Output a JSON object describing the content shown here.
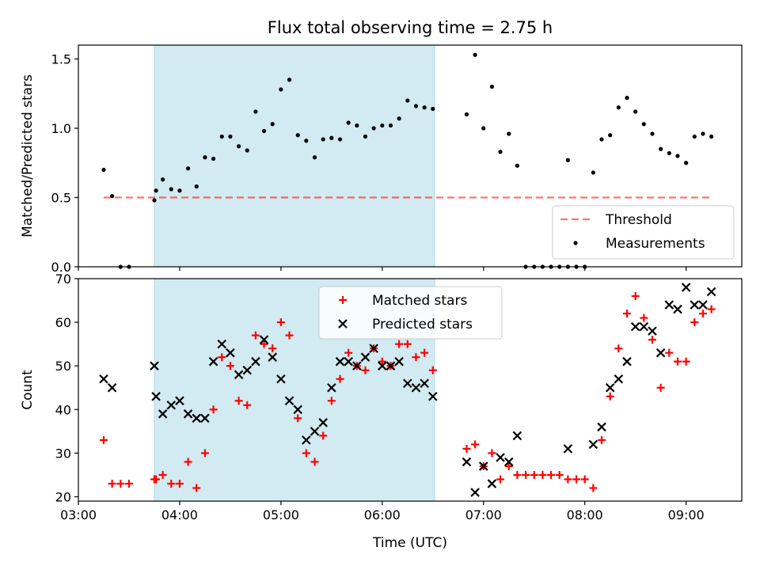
{
  "title": "Flux total observing time = 2.75 h",
  "colors": {
    "shade": "#add8e6",
    "threshold": "#ff0000",
    "measurements": "#000000",
    "matched": "#ff0000",
    "predicted": "#000000"
  },
  "chart_data": [
    {
      "type": "scatter",
      "panel": "top",
      "ylabel": "Matched/Predicted stars",
      "xlabel": "",
      "xlim": [
        "03:00",
        "09:33"
      ],
      "ylim": [
        0,
        1.6
      ],
      "yticks": [
        "0.0",
        "0.5",
        "1.0",
        "1.5"
      ],
      "shaded_region": {
        "start": "03:45",
        "end": "06:31"
      },
      "legend": {
        "position": "lower-right",
        "entries": [
          "Threshold",
          "Measurements"
        ]
      },
      "threshold": {
        "name": "Threshold",
        "value": 0.5,
        "x_range": [
          "03:15",
          "09:15"
        ],
        "style": "dashed"
      },
      "series": [
        {
          "name": "Measurements",
          "marker": "dot",
          "points": [
            [
              "03:15",
              0.7
            ],
            [
              "03:20",
              0.51
            ],
            [
              "03:25",
              0.0
            ],
            [
              "03:30",
              0.0
            ],
            [
              "03:45",
              0.48
            ],
            [
              "03:46",
              0.55
            ],
            [
              "03:50",
              0.63
            ],
            [
              "03:55",
              0.56
            ],
            [
              "04:00",
              0.55
            ],
            [
              "04:05",
              0.71
            ],
            [
              "04:10",
              0.58
            ],
            [
              "04:15",
              0.79
            ],
            [
              "04:20",
              0.78
            ],
            [
              "04:25",
              0.94
            ],
            [
              "04:30",
              0.94
            ],
            [
              "04:35",
              0.87
            ],
            [
              "04:40",
              0.84
            ],
            [
              "04:45",
              1.12
            ],
            [
              "04:50",
              0.98
            ],
            [
              "04:55",
              1.03
            ],
            [
              "05:00",
              1.28
            ],
            [
              "05:05",
              1.35
            ],
            [
              "05:10",
              0.95
            ],
            [
              "05:15",
              0.91
            ],
            [
              "05:20",
              0.79
            ],
            [
              "05:25",
              0.92
            ],
            [
              "05:30",
              0.93
            ],
            [
              "05:35",
              0.92
            ],
            [
              "05:40",
              1.04
            ],
            [
              "05:45",
              1.02
            ],
            [
              "05:50",
              0.94
            ],
            [
              "05:55",
              1.0
            ],
            [
              "06:00",
              1.02
            ],
            [
              "06:05",
              1.02
            ],
            [
              "06:10",
              1.07
            ],
            [
              "06:15",
              1.2
            ],
            [
              "06:20",
              1.16
            ],
            [
              "06:25",
              1.15
            ],
            [
              "06:30",
              1.14
            ],
            [
              "06:50",
              1.1
            ],
            [
              "06:55",
              1.53
            ],
            [
              "07:00",
              1.0
            ],
            [
              "07:05",
              1.3
            ],
            [
              "07:10",
              0.83
            ],
            [
              "07:15",
              0.96
            ],
            [
              "07:20",
              0.73
            ],
            [
              "07:25",
              0.0
            ],
            [
              "07:30",
              0.0
            ],
            [
              "07:35",
              0.0
            ],
            [
              "07:40",
              0.0
            ],
            [
              "07:45",
              0.0
            ],
            [
              "07:50",
              0.0
            ],
            [
              "07:55",
              0.0
            ],
            [
              "08:00",
              0.0
            ],
            [
              "07:50",
              0.77
            ],
            [
              "08:05",
              0.68
            ],
            [
              "08:10",
              0.92
            ],
            [
              "08:15",
              0.95
            ],
            [
              "08:20",
              1.15
            ],
            [
              "08:25",
              1.22
            ],
            [
              "08:30",
              1.12
            ],
            [
              "08:35",
              1.03
            ],
            [
              "08:40",
              0.96
            ],
            [
              "08:45",
              0.85
            ],
            [
              "08:50",
              0.82
            ],
            [
              "08:55",
              0.8
            ],
            [
              "09:00",
              0.75
            ],
            [
              "09:05",
              0.94
            ],
            [
              "09:10",
              0.96
            ],
            [
              "09:15",
              0.94
            ]
          ]
        }
      ]
    },
    {
      "type": "scatter",
      "panel": "bottom",
      "ylabel": "Count",
      "xlabel": "Time (UTC)",
      "xlim": [
        "03:00",
        "09:33"
      ],
      "ylim": [
        19,
        70
      ],
      "yticks": [
        "20",
        "30",
        "40",
        "50",
        "60",
        "70"
      ],
      "xticks": [
        "03:00",
        "04:00",
        "05:00",
        "06:00",
        "07:00",
        "08:00",
        "09:00"
      ],
      "shaded_region": {
        "start": "03:45",
        "end": "06:31"
      },
      "legend": {
        "position": "top-center",
        "entries": [
          "Matched stars",
          "Predicted stars"
        ]
      },
      "series": [
        {
          "name": "Matched stars",
          "marker": "plus",
          "points": [
            [
              "03:15",
              33
            ],
            [
              "03:20",
              23
            ],
            [
              "03:25",
              23
            ],
            [
              "03:30",
              23
            ],
            [
              "03:45",
              24
            ],
            [
              "03:46",
              24
            ],
            [
              "03:50",
              25
            ],
            [
              "03:55",
              23
            ],
            [
              "04:00",
              23
            ],
            [
              "04:05",
              28
            ],
            [
              "04:10",
              22
            ],
            [
              "04:15",
              30
            ],
            [
              "04:20",
              40
            ],
            [
              "04:25",
              52
            ],
            [
              "04:30",
              50
            ],
            [
              "04:35",
              42
            ],
            [
              "04:40",
              41
            ],
            [
              "04:45",
              57
            ],
            [
              "04:50",
              55
            ],
            [
              "04:55",
              54
            ],
            [
              "05:00",
              60
            ],
            [
              "05:05",
              57
            ],
            [
              "05:10",
              38
            ],
            [
              "05:15",
              30
            ],
            [
              "05:20",
              28
            ],
            [
              "05:25",
              34
            ],
            [
              "05:30",
              42
            ],
            [
              "05:35",
              47
            ],
            [
              "05:40",
              53
            ],
            [
              "05:45",
              50
            ],
            [
              "05:50",
              49
            ],
            [
              "05:55",
              54
            ],
            [
              "06:00",
              51
            ],
            [
              "06:05",
              50
            ],
            [
              "06:10",
              55
            ],
            [
              "06:15",
              55
            ],
            [
              "06:20",
              52
            ],
            [
              "06:25",
              53
            ],
            [
              "06:30",
              49
            ],
            [
              "06:50",
              31
            ],
            [
              "06:55",
              32
            ],
            [
              "07:00",
              27
            ],
            [
              "07:05",
              30
            ],
            [
              "07:10",
              24
            ],
            [
              "07:15",
              27
            ],
            [
              "07:20",
              25
            ],
            [
              "07:25",
              25
            ],
            [
              "07:30",
              25
            ],
            [
              "07:35",
              25
            ],
            [
              "07:40",
              25
            ],
            [
              "07:45",
              25
            ],
            [
              "07:50",
              24
            ],
            [
              "07:55",
              24
            ],
            [
              "08:00",
              24
            ],
            [
              "08:05",
              22
            ],
            [
              "08:10",
              33
            ],
            [
              "08:15",
              43
            ],
            [
              "08:20",
              54
            ],
            [
              "08:25",
              62
            ],
            [
              "08:30",
              66
            ],
            [
              "08:35",
              61
            ],
            [
              "08:40",
              56
            ],
            [
              "08:45",
              45
            ],
            [
              "08:50",
              53
            ],
            [
              "08:55",
              51
            ],
            [
              "09:00",
              51
            ],
            [
              "09:05",
              60
            ],
            [
              "09:10",
              62
            ],
            [
              "09:15",
              63
            ]
          ]
        },
        {
          "name": "Predicted stars",
          "marker": "x",
          "points": [
            [
              "03:15",
              47
            ],
            [
              "03:20",
              45
            ],
            [
              "03:45",
              50
            ],
            [
              "03:46",
              43
            ],
            [
              "03:50",
              39
            ],
            [
              "03:55",
              41
            ],
            [
              "04:00",
              42
            ],
            [
              "04:05",
              39
            ],
            [
              "04:10",
              38
            ],
            [
              "04:15",
              38
            ],
            [
              "04:20",
              51
            ],
            [
              "04:25",
              55
            ],
            [
              "04:30",
              53
            ],
            [
              "04:35",
              48
            ],
            [
              "04:40",
              49
            ],
            [
              "04:45",
              51
            ],
            [
              "04:50",
              56
            ],
            [
              "04:55",
              52
            ],
            [
              "05:00",
              47
            ],
            [
              "05:05",
              42
            ],
            [
              "05:10",
              40
            ],
            [
              "05:15",
              33
            ],
            [
              "05:20",
              35
            ],
            [
              "05:25",
              37
            ],
            [
              "05:30",
              45
            ],
            [
              "05:35",
              51
            ],
            [
              "05:40",
              51
            ],
            [
              "05:45",
              50
            ],
            [
              "05:50",
              52
            ],
            [
              "05:55",
              54
            ],
            [
              "06:00",
              50
            ],
            [
              "06:05",
              50
            ],
            [
              "06:10",
              51
            ],
            [
              "06:15",
              46
            ],
            [
              "06:20",
              45
            ],
            [
              "06:25",
              46
            ],
            [
              "06:30",
              43
            ],
            [
              "06:50",
              28
            ],
            [
              "06:55",
              21
            ],
            [
              "07:00",
              27
            ],
            [
              "07:05",
              23
            ],
            [
              "07:10",
              29
            ],
            [
              "07:15",
              28
            ],
            [
              "07:20",
              34
            ],
            [
              "07:50",
              31
            ],
            [
              "08:05",
              32
            ],
            [
              "08:10",
              36
            ],
            [
              "08:15",
              45
            ],
            [
              "08:20",
              47
            ],
            [
              "08:25",
              51
            ],
            [
              "08:30",
              59
            ],
            [
              "08:35",
              59
            ],
            [
              "08:40",
              58
            ],
            [
              "08:45",
              53
            ],
            [
              "08:50",
              64
            ],
            [
              "08:55",
              63
            ],
            [
              "09:00",
              68
            ],
            [
              "09:05",
              64
            ],
            [
              "09:10",
              64
            ],
            [
              "09:15",
              67
            ]
          ]
        }
      ]
    }
  ]
}
